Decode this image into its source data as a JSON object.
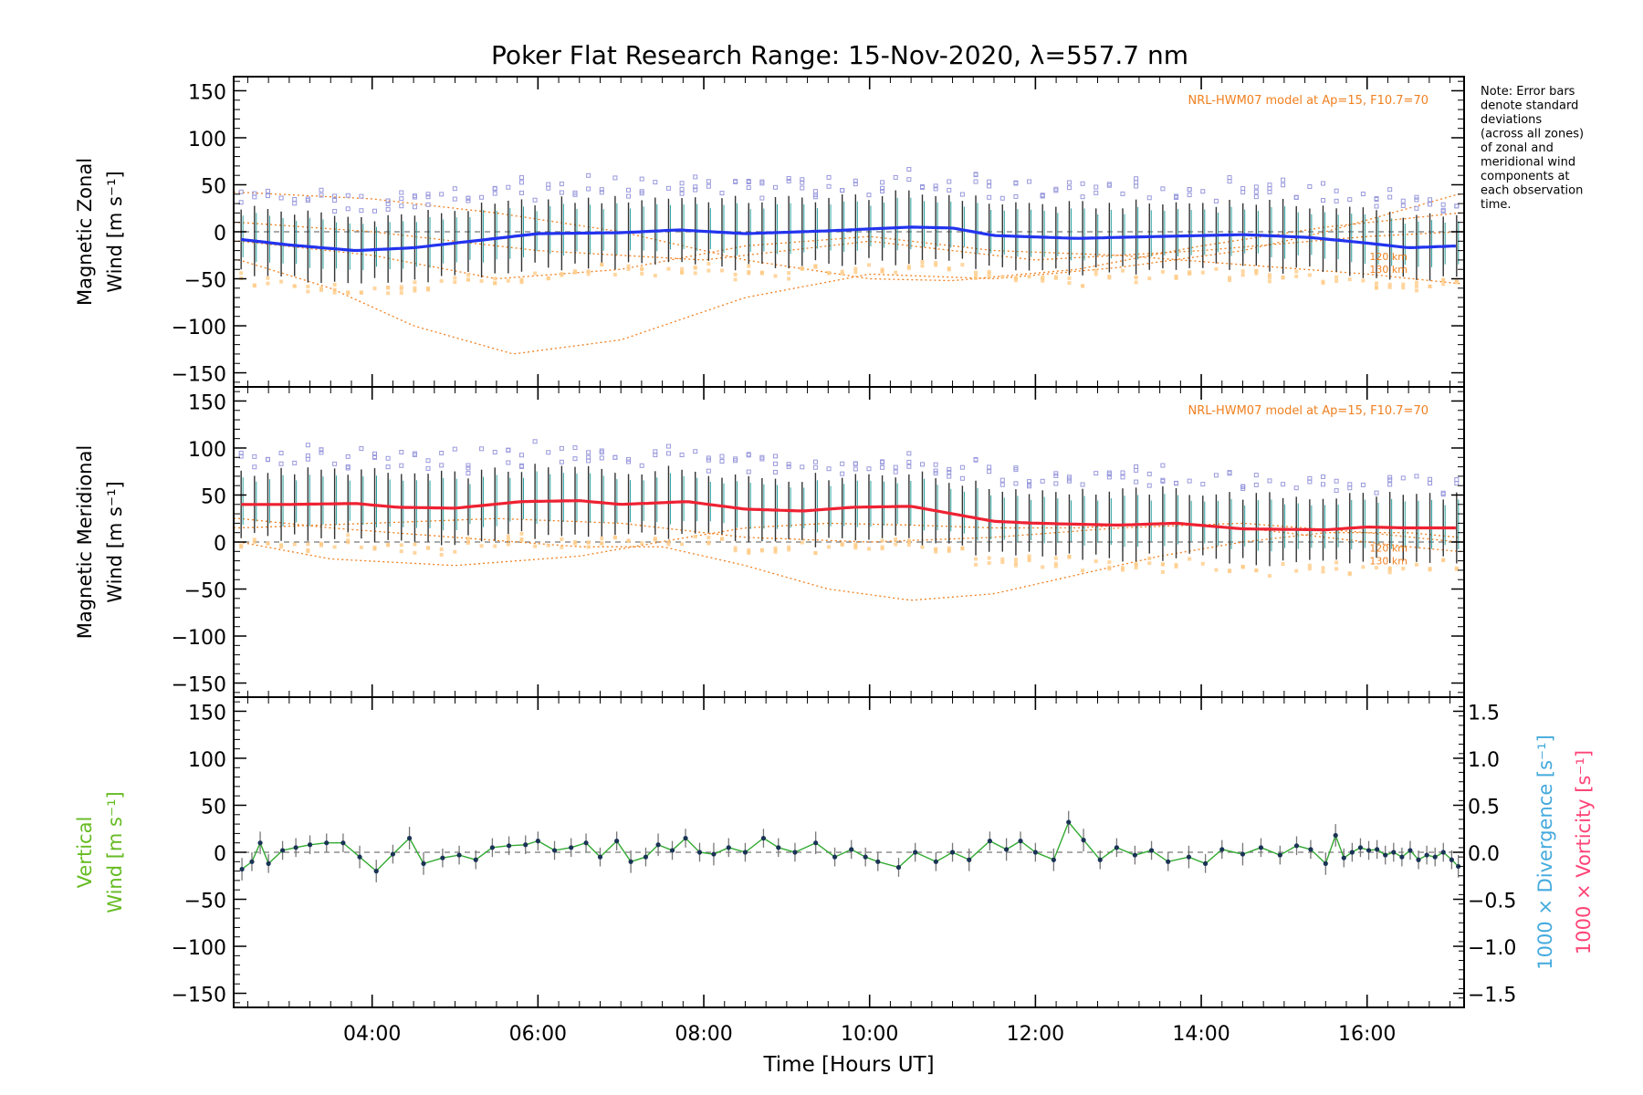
{
  "title": "Poker Flat Research Range: 15-Nov-2020, λ=557.7 nm",
  "note": [
    "Note: Error bars",
    "denote standard",
    "deviations",
    "(across all zones)",
    "of zonal and",
    "meridional wind",
    "components at",
    "each observation",
    "time."
  ],
  "colors": {
    "zonal": "#2233ee",
    "meridional": "#ee2233",
    "vertical_label": "#66bb22",
    "vertical_line": "#33aa33",
    "model": "#f08020",
    "zone_points": "#9999dd",
    "zone_points_low": "#ffcc88",
    "divergence": "#44aadd",
    "vorticity": "#ff4477",
    "errorbar": "#333333"
  },
  "chart_data": [
    {
      "type": "line",
      "panel": "zonal",
      "ylabel_lines": [
        "Magnetic Zonal",
        "Wind [m s⁻¹]"
      ],
      "ylim": [
        -165,
        165
      ],
      "yticks": [
        150,
        100,
        50,
        0,
        -50,
        -100,
        -150
      ],
      "xlim": [
        2.33,
        17.17
      ],
      "model_label": "NRL-HWM07 model at Ap=15, F10.7=70",
      "model_alt_labels": [
        "120 km",
        "130 km"
      ],
      "knots_t": [
        2.4,
        3.0,
        3.8,
        4.5,
        5.2,
        6.0,
        7.0,
        7.7,
        8.5,
        9.5,
        10.5,
        11.0,
        11.5,
        12.5,
        13.5,
        14.5,
        15.3,
        16.0,
        16.5,
        17.1
      ],
      "knots_v": [
        -8,
        -14,
        -20,
        -17,
        -10,
        -2,
        -1,
        2,
        -2,
        1,
        5,
        4,
        -4,
        -7,
        -5,
        -3,
        -6,
        -12,
        -17,
        -15
      ],
      "model_curves": [
        {
          "t": [
            2.4,
            3.5,
            4.5,
            5.7,
            7.0,
            8.5,
            10.0,
            11.5,
            13.0,
            14.5,
            15.5,
            16.5,
            17.1
          ],
          "v": [
            -30,
            -60,
            -100,
            -130,
            -115,
            -70,
            -45,
            -50,
            -38,
            -20,
            0,
            25,
            40
          ]
        },
        {
          "t": [
            2.4,
            4.0,
            5.5,
            7.0,
            8.5,
            10.0,
            11.0,
            12.5,
            14.0,
            15.5,
            17.1
          ],
          "v": [
            42,
            35,
            20,
            0,
            -30,
            -50,
            -52,
            -40,
            -15,
            5,
            20
          ]
        },
        {
          "t": [
            2.4,
            4.0,
            5.5,
            7.0,
            8.5,
            10.0,
            11.5,
            13.0,
            14.5,
            16.0,
            17.1
          ],
          "v": [
            -10,
            -25,
            -50,
            -40,
            -15,
            -5,
            -20,
            -25,
            -35,
            -45,
            -55
          ]
        },
        {
          "t": [
            2.4,
            4.0,
            6.0,
            8.0,
            10.0,
            12.0,
            14.0,
            16.0,
            17.1
          ],
          "v": [
            10,
            0,
            -20,
            -30,
            -10,
            -30,
            -20,
            -5,
            0
          ]
        }
      ]
    },
    {
      "type": "line",
      "panel": "meridional",
      "ylabel_lines": [
        "Magnetic Meridional",
        "Wind [m s⁻¹]"
      ],
      "ylim": [
        -165,
        165
      ],
      "yticks": [
        150,
        100,
        50,
        0,
        -50,
        -100,
        -150
      ],
      "xlim": [
        2.33,
        17.17
      ],
      "model_label": "NRL-HWM07 model at Ap=15, F10.7=70",
      "model_alt_labels": [
        "120 km",
        "130 km"
      ],
      "knots_t": [
        2.4,
        3.0,
        3.8,
        4.3,
        5.0,
        5.8,
        6.5,
        7.0,
        7.8,
        8.5,
        9.2,
        9.8,
        10.5,
        11.0,
        11.5,
        12.0,
        13.0,
        13.7,
        14.5,
        15.5,
        16.0,
        16.5,
        17.1
      ],
      "knots_v": [
        40,
        40,
        41,
        37,
        36,
        43,
        44,
        40,
        43,
        35,
        33,
        37,
        38,
        30,
        22,
        20,
        18,
        20,
        14,
        13,
        16,
        15,
        15
      ],
      "model_curves": [
        {
          "t": [
            2.4,
            3.5,
            5.0,
            6.5,
            7.8,
            8.5,
            9.5,
            10.5,
            11.5,
            12.5,
            13.5,
            14.5,
            15.5,
            16.5,
            17.1
          ],
          "v": [
            0,
            -18,
            -25,
            -15,
            5,
            15,
            20,
            18,
            15,
            15,
            20,
            15,
            5,
            -5,
            -10
          ]
        },
        {
          "t": [
            2.4,
            3.5,
            5.0,
            6.5,
            7.5,
            8.5,
            9.5,
            10.5,
            11.5,
            12.5,
            13.5,
            14.5,
            15.5,
            16.5,
            17.1
          ],
          "v": [
            25,
            15,
            5,
            -5,
            -5,
            -25,
            -50,
            -62,
            -55,
            -35,
            -15,
            0,
            10,
            10,
            5
          ]
        },
        {
          "t": [
            2.4,
            4.0,
            5.5,
            7.0,
            8.5,
            10.0,
            11.5,
            13.0,
            14.5,
            16.0,
            17.1
          ],
          "v": [
            15,
            20,
            25,
            20,
            5,
            0,
            5,
            15,
            20,
            10,
            0
          ]
        }
      ]
    },
    {
      "type": "line",
      "panel": "vertical",
      "ylabel_lines": [
        "Vertical",
        "Wind [m s⁻¹]"
      ],
      "ylim": [
        -165,
        165
      ],
      "yticks": [
        150,
        100,
        50,
        0,
        -50,
        -100,
        -150
      ],
      "y2lim": [
        -1.65,
        1.65
      ],
      "y2ticks": [
        "1.5",
        "1.0",
        "0.5",
        "0.0",
        "−0.5",
        "−1.0",
        "−1.5"
      ],
      "y2ticks_values": [
        1.5,
        1.0,
        0.5,
        0.0,
        -0.5,
        -1.0,
        -1.5
      ],
      "y2label_divergence": "1000 × Divergence [s⁻¹]",
      "y2label_vorticity": "1000 × Vorticity [s⁻¹]",
      "xlim": [
        2.33,
        17.17
      ],
      "xticks": [
        "04:00",
        "06:00",
        "08:00",
        "10:00",
        "12:00",
        "14:00",
        "16:00"
      ],
      "xticks_values": [
        4,
        6,
        8,
        10,
        12,
        14,
        16
      ],
      "xlabel": "Time [Hours UT]",
      "t": [
        2.43,
        2.55,
        2.65,
        2.75,
        2.92,
        3.08,
        3.25,
        3.45,
        3.65,
        3.85,
        4.05,
        4.25,
        4.45,
        4.62,
        4.85,
        5.05,
        5.25,
        5.45,
        5.65,
        5.85,
        6.0,
        6.2,
        6.4,
        6.58,
        6.75,
        6.95,
        7.12,
        7.3,
        7.45,
        7.62,
        7.78,
        7.95,
        8.12,
        8.3,
        8.5,
        8.72,
        8.9,
        9.1,
        9.35,
        9.58,
        9.78,
        9.95,
        10.1,
        10.35,
        10.55,
        10.8,
        11.0,
        11.2,
        11.45,
        11.65,
        11.82,
        12.0,
        12.22,
        12.4,
        12.58,
        12.78,
        12.98,
        13.2,
        13.4,
        13.6,
        13.85,
        14.05,
        14.25,
        14.5,
        14.72,
        14.95,
        15.15,
        15.32,
        15.5,
        15.62,
        15.72,
        15.82,
        15.92,
        16.02,
        16.12,
        16.22,
        16.32,
        16.42,
        16.52,
        16.62,
        16.72,
        16.82,
        16.92,
        17.02,
        17.1
      ],
      "v": [
        -18,
        -10,
        10,
        -12,
        2,
        5,
        8,
        10,
        10,
        -5,
        -20,
        -2,
        15,
        -12,
        -6,
        -3,
        -8,
        5,
        7,
        8,
        12,
        2,
        5,
        10,
        -5,
        12,
        -10,
        -5,
        8,
        2,
        15,
        0,
        -2,
        5,
        0,
        15,
        5,
        0,
        10,
        -5,
        3,
        -5,
        -10,
        -16,
        0,
        -10,
        0,
        -8,
        12,
        3,
        12,
        0,
        -8,
        32,
        13,
        -8,
        5,
        -3,
        2,
        -10,
        -5,
        -12,
        3,
        -2,
        5,
        -3,
        7,
        3,
        -12,
        18,
        -6,
        0,
        5,
        2,
        3,
        -3,
        0,
        -5,
        2,
        -8,
        -3,
        -5,
        0,
        -8,
        -15
      ],
      "verr": [
        12,
        10,
        12,
        10,
        10,
        10,
        10,
        10,
        10,
        12,
        12,
        10,
        12,
        12,
        10,
        10,
        10,
        10,
        10,
        10,
        10,
        10,
        10,
        10,
        10,
        10,
        12,
        10,
        12,
        10,
        10,
        10,
        12,
        10,
        10,
        10,
        10,
        10,
        12,
        10,
        10,
        10,
        10,
        10,
        10,
        10,
        10,
        12,
        10,
        12,
        10,
        10,
        12,
        12,
        12,
        10,
        10,
        10,
        10,
        10,
        12,
        10,
        10,
        12,
        10,
        10,
        10,
        10,
        12,
        12,
        10,
        10,
        10,
        10,
        10,
        10,
        10,
        10,
        10,
        10,
        10,
        10,
        10,
        10,
        12
      ]
    }
  ]
}
